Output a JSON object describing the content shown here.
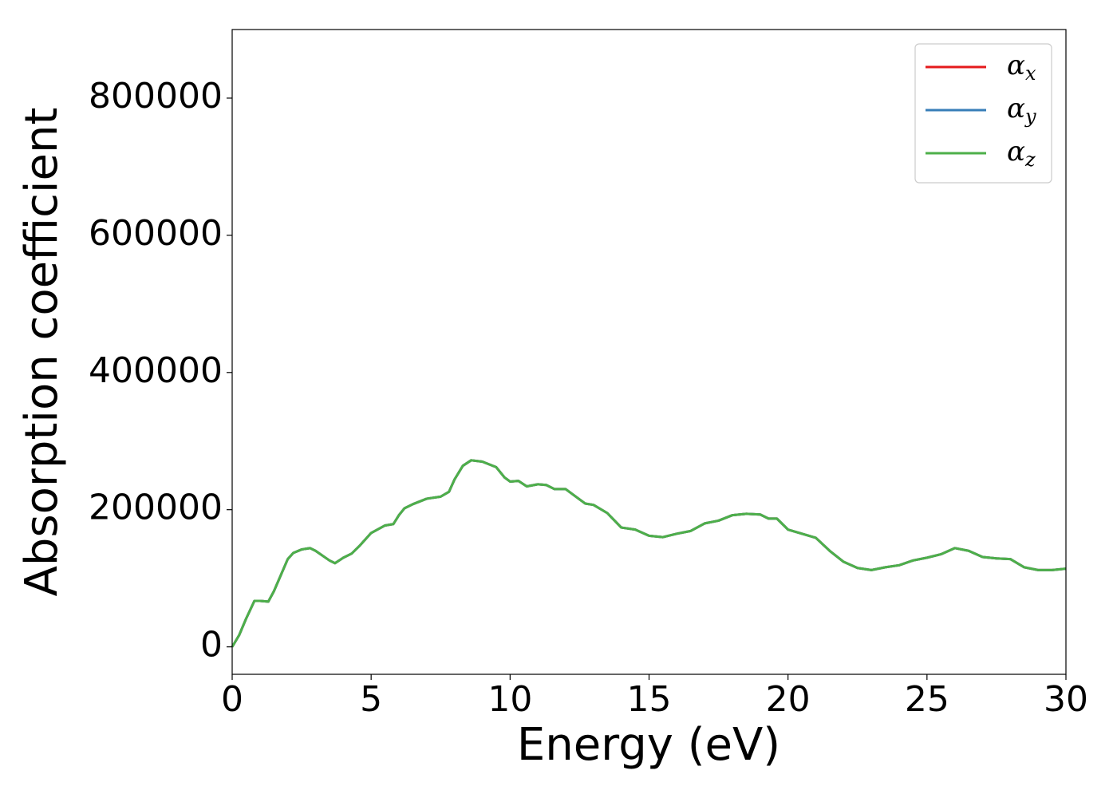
{
  "chart_data": {
    "type": "line",
    "xlabel": "Energy (eV)",
    "ylabel": "Absorption coefficient",
    "x": [
      0,
      0.25,
      0.5,
      0.8,
      1.0,
      1.3,
      1.5,
      2.0,
      2.2,
      2.5,
      2.8,
      3.0,
      3.5,
      3.7,
      4.0,
      4.3,
      4.6,
      5.0,
      5.5,
      5.8,
      6.0,
      6.2,
      6.5,
      7.0,
      7.5,
      7.8,
      8.0,
      8.3,
      8.6,
      9.0,
      9.5,
      9.8,
      10.0,
      10.3,
      10.6,
      11.0,
      11.3,
      11.6,
      12.0,
      12.3,
      12.7,
      13.0,
      13.5,
      14.0,
      14.5,
      15.0,
      15.5,
      16.0,
      16.5,
      17.0,
      17.5,
      18.0,
      18.5,
      19.0,
      19.3,
      19.6,
      20.0,
      20.5,
      21.0,
      21.5,
      22.0,
      22.5,
      23.0,
      23.5,
      24.0,
      24.5,
      25.0,
      25.5,
      26.0,
      26.5,
      27.0,
      27.5,
      28.0,
      28.5,
      29.0,
      29.5,
      30.0
    ],
    "series": [
      {
        "name": "αx",
        "color": "#e41a1c",
        "values": [
          0,
          17000,
          41000,
          67000,
          67000,
          66000,
          81000,
          128000,
          137000,
          142000,
          144000,
          140000,
          126000,
          122000,
          130000,
          136000,
          148000,
          166000,
          177000,
          179000,
          192000,
          202000,
          208000,
          216000,
          219000,
          226000,
          244000,
          264000,
          272000,
          270000,
          262000,
          247000,
          241000,
          242000,
          234000,
          237000,
          236000,
          230000,
          230000,
          221000,
          209000,
          207000,
          195000,
          174000,
          171000,
          162000,
          160000,
          165000,
          169000,
          180000,
          184000,
          192000,
          194000,
          193000,
          187000,
          187000,
          171000,
          165000,
          159000,
          140000,
          124000,
          115000,
          112000,
          116000,
          119000,
          126000,
          130000,
          135000,
          144000,
          140000,
          131000,
          129000,
          128000,
          116000,
          112000,
          112000,
          114000
        ]
      },
      {
        "name": "αy",
        "color": "#377eb8",
        "values": [
          0,
          17000,
          41000,
          67000,
          67000,
          66000,
          81000,
          128000,
          137000,
          142000,
          144000,
          140000,
          126000,
          122000,
          130000,
          136000,
          148000,
          166000,
          177000,
          179000,
          192000,
          202000,
          208000,
          216000,
          219000,
          226000,
          244000,
          264000,
          272000,
          270000,
          262000,
          247000,
          241000,
          242000,
          234000,
          237000,
          236000,
          230000,
          230000,
          221000,
          209000,
          207000,
          195000,
          174000,
          171000,
          162000,
          160000,
          165000,
          169000,
          180000,
          184000,
          192000,
          194000,
          193000,
          187000,
          187000,
          171000,
          165000,
          159000,
          140000,
          124000,
          115000,
          112000,
          116000,
          119000,
          126000,
          130000,
          135000,
          144000,
          140000,
          131000,
          129000,
          128000,
          116000,
          112000,
          112000,
          114000
        ]
      },
      {
        "name": "αz",
        "color": "#4daf4a",
        "values": [
          0,
          17000,
          41000,
          67000,
          67000,
          66000,
          81000,
          128000,
          137000,
          142000,
          144000,
          140000,
          126000,
          122000,
          130000,
          136000,
          148000,
          166000,
          177000,
          179000,
          192000,
          202000,
          208000,
          216000,
          219000,
          226000,
          244000,
          264000,
          272000,
          270000,
          262000,
          247000,
          241000,
          242000,
          234000,
          237000,
          236000,
          230000,
          230000,
          221000,
          209000,
          207000,
          195000,
          174000,
          171000,
          162000,
          160000,
          165000,
          169000,
          180000,
          184000,
          192000,
          194000,
          193000,
          187000,
          187000,
          171000,
          165000,
          159000,
          140000,
          124000,
          115000,
          112000,
          116000,
          119000,
          126000,
          130000,
          135000,
          144000,
          140000,
          131000,
          129000,
          128000,
          116000,
          112000,
          112000,
          114000
        ]
      }
    ],
    "xlim": [
      0,
      30
    ],
    "xticks": [
      0,
      5,
      10,
      15,
      20,
      25,
      30
    ],
    "ylim": [
      -40000,
      900000
    ],
    "yticks": [
      0,
      200000,
      400000,
      600000,
      800000
    ],
    "grid": false,
    "legend": "upper right"
  }
}
